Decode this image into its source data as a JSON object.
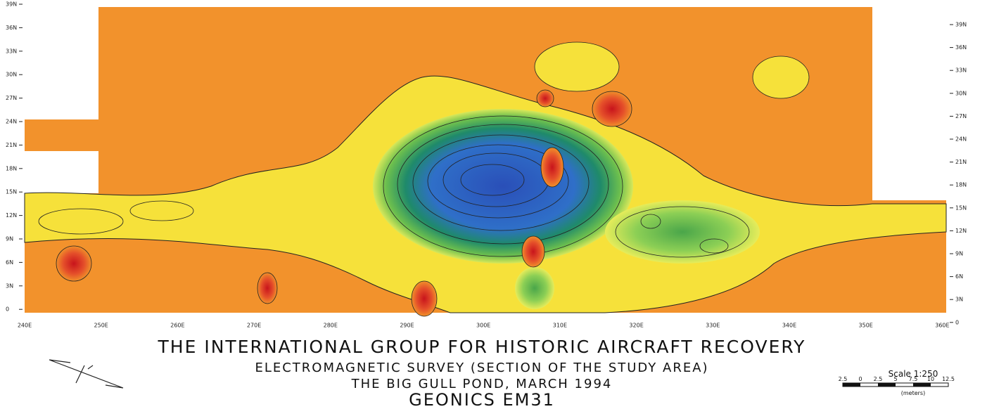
{
  "left_axis": {
    "labels": [
      "39N",
      "36N",
      "33N",
      "30N",
      "27N",
      "24N",
      "21N",
      "18N",
      "15N",
      "12N",
      "9N",
      "6N",
      "3N",
      "0"
    ]
  },
  "right_axis": {
    "labels": [
      "39N",
      "36N",
      "33N",
      "30N",
      "27N",
      "24N",
      "21N",
      "18N",
      "15N",
      "12N",
      "9N",
      "6N",
      "3N",
      "0"
    ]
  },
  "bottom_axis": {
    "labels": [
      "240E",
      "250E",
      "260E",
      "270E",
      "280E",
      "290E",
      "300E",
      "310E",
      "320E",
      "330E",
      "340E",
      "350E",
      "360E"
    ]
  },
  "title": {
    "lines": [
      "THE INTERNATIONAL GROUP FOR HISTORIC AIRCRAFT RECOVERY",
      "ELECTROMAGNETIC SURVEY (SECTION OF THE STUDY AREA)",
      "THE BIG GULL POND, MARCH 1994",
      "GEONICS EM31"
    ]
  },
  "scale_bar": {
    "title": "Scale 1:250",
    "ticks": [
      "2.5",
      "0",
      "2.5",
      "5",
      "7.5",
      "10",
      "12.5"
    ],
    "unit": "(meters)"
  }
}
